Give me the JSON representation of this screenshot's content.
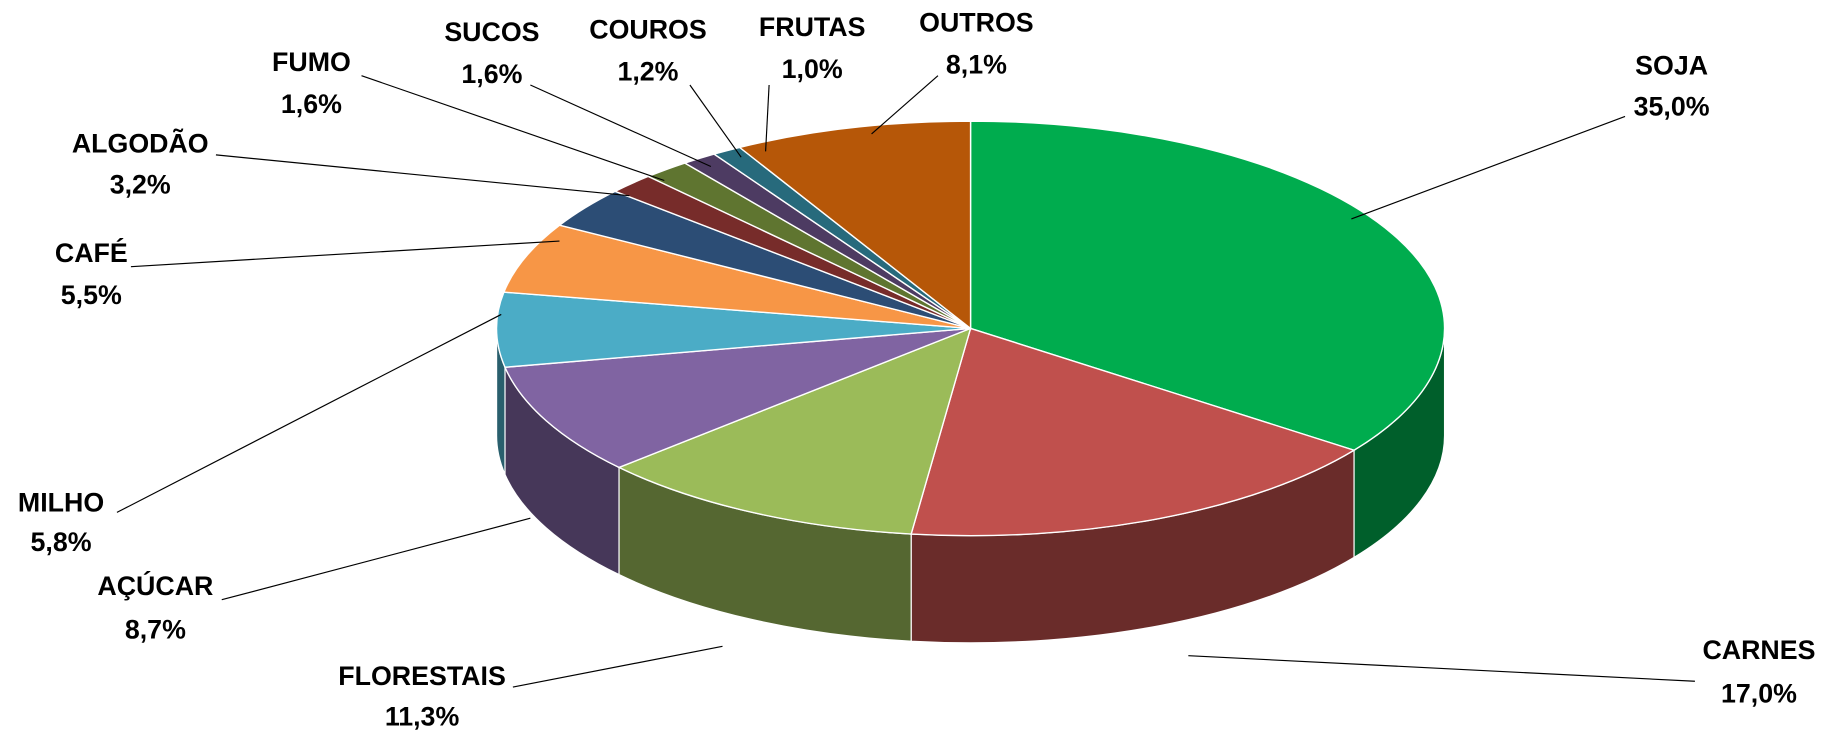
{
  "chart_data": {
    "type": "pie",
    "categories": [
      "SOJA",
      "CARNES",
      "FLORESTAIS",
      "AÇÚCAR",
      "MILHO",
      "CAFÉ",
      "ALGODÃO",
      "FUMO",
      "SUCOS",
      "COUROS",
      "FRUTAS",
      "OUTROS"
    ],
    "values": [
      35.0,
      17.0,
      11.3,
      8.7,
      5.8,
      5.5,
      3.2,
      1.6,
      1.6,
      1.2,
      1.0,
      8.1
    ],
    "value_labels": [
      "35,0%",
      "17,0%",
      "11,3%",
      "8,7%",
      "5,8%",
      "5,5%",
      "3,2%",
      "1,6%",
      "1,6%",
      "1,2%",
      "1,0%",
      "8,1%"
    ],
    "colors": [
      "#00ac4e",
      "#c0504d",
      "#9bbb59",
      "#8064a2",
      "#4bacc6",
      "#f79646",
      "#2c4d75",
      "#772c2a",
      "#5f7530",
      "#4d3b62",
      "#276a7c",
      "#b65708"
    ]
  }
}
